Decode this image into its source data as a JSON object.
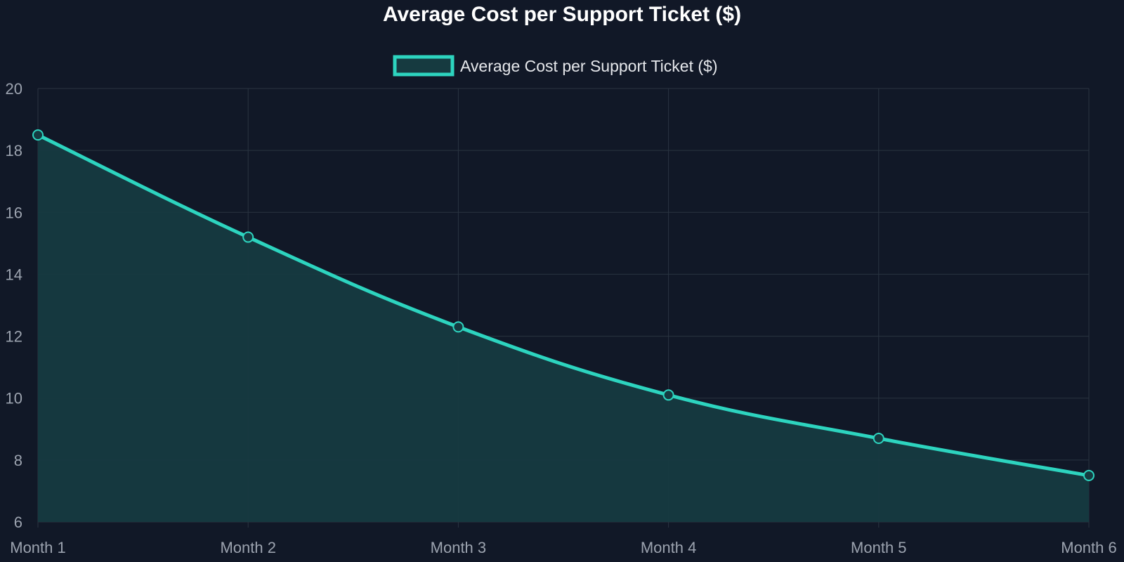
{
  "chart_data": {
    "type": "area",
    "title": "Average Cost per Support Ticket ($)",
    "categories": [
      "Month 1",
      "Month 2",
      "Month 3",
      "Month 4",
      "Month 5",
      "Month 6"
    ],
    "series": [
      {
        "name": "Average Cost per Support Ticket ($)",
        "values": [
          18.5,
          15.2,
          12.3,
          10.1,
          8.7,
          7.5
        ]
      }
    ],
    "ylim": [
      6,
      20
    ],
    "yticks": [
      "6",
      "8",
      "10",
      "12",
      "14",
      "16",
      "18",
      "20"
    ],
    "grid": true,
    "legend_position": "top-center",
    "colors": {
      "line": "#2dd4bf",
      "fill": "#163a40",
      "background": "#111827"
    }
  }
}
